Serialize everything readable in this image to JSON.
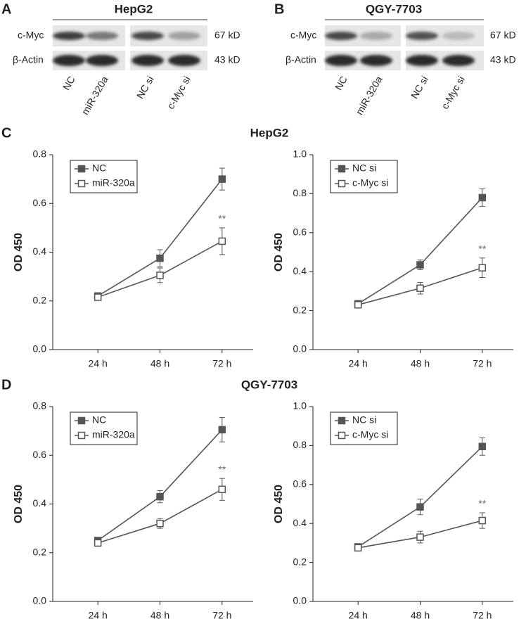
{
  "blots": [
    {
      "letter": "A",
      "title": "HepG2",
      "rows": [
        "c-Myc",
        "β-Actin"
      ],
      "sizes": [
        "67 kD",
        "43 kD"
      ],
      "lanes": [
        "NC",
        "miR-320a",
        "NC si",
        "c-Myc si"
      ]
    },
    {
      "letter": "B",
      "title": "QGY-7703",
      "rows": [
        "c-Myc",
        "β-Actin"
      ],
      "sizes": [
        "67 kD",
        "43 kD"
      ],
      "lanes": [
        "NC",
        "miR-320a",
        "NC si",
        "c-Myc si"
      ]
    }
  ],
  "sections": [
    {
      "letter": "C",
      "title": "HepG2"
    },
    {
      "letter": "D",
      "title": "QGY-7703"
    }
  ],
  "chart_data": [
    {
      "type": "line",
      "categories": [
        "24 h",
        "48 h",
        "72 h"
      ],
      "ylabel": "OD 450",
      "ylim": [
        0,
        0.8
      ],
      "yticks": [
        {
          "value": 0,
          "label": "0.0"
        },
        0.2,
        0.4,
        0.6,
        0.8
      ],
      "legend": "upper left",
      "series": [
        {
          "name": "NC",
          "color": "#555555",
          "marker": "filled-square",
          "values": [
            0.22,
            0.375,
            0.7
          ],
          "errors": [
            0.008,
            0.035,
            0.045
          ]
        },
        {
          "name": "miR-320a",
          "color": "#555555",
          "marker": "open-square",
          "values": [
            0.215,
            0.305,
            0.445
          ],
          "errors": [
            0.008,
            0.03,
            0.055
          ]
        }
      ],
      "annotations": [
        {
          "text": "**",
          "x": "72 h"
        }
      ]
    },
    {
      "type": "line",
      "categories": [
        "24 h",
        "48 h",
        "72 h"
      ],
      "ylabel": "OD 450",
      "ylim": [
        0,
        1
      ],
      "yticks": [
        {
          "value": 0,
          "label": "0.0"
        },
        0.2,
        0.4,
        0.6,
        0.8,
        {
          "value": 1,
          "label": "1.0"
        }
      ],
      "legend": "upper left",
      "series": [
        {
          "name": "NC si",
          "color": "#555555",
          "marker": "filled-square",
          "values": [
            0.235,
            0.435,
            0.78
          ],
          "errors": [
            0.008,
            0.025,
            0.045
          ]
        },
        {
          "name": "c-Myc si",
          "color": "#555555",
          "marker": "open-square",
          "values": [
            0.23,
            0.315,
            0.42
          ],
          "errors": [
            0.008,
            0.03,
            0.05
          ]
        }
      ],
      "annotations": [
        {
          "text": "**",
          "x": "72 h"
        }
      ]
    },
    {
      "type": "line",
      "categories": [
        "24 h",
        "48 h",
        "72 h"
      ],
      "ylabel": "OD 450",
      "ylim": [
        0,
        0.8
      ],
      "yticks": [
        {
          "value": 0,
          "label": "0.0"
        },
        0.2,
        0.4,
        0.6,
        0.8
      ],
      "legend": "upper left",
      "series": [
        {
          "name": "NC",
          "color": "#555555",
          "marker": "filled-square",
          "values": [
            0.25,
            0.43,
            0.705
          ],
          "errors": [
            0.008,
            0.025,
            0.05
          ]
        },
        {
          "name": "miR-320a",
          "color": "#555555",
          "marker": "open-square",
          "values": [
            0.24,
            0.32,
            0.46
          ],
          "errors": [
            0.008,
            0.02,
            0.045
          ]
        }
      ],
      "annotations": [
        {
          "text": "**",
          "x": "72 h"
        }
      ]
    },
    {
      "type": "line",
      "categories": [
        "24 h",
        "48 h",
        "72 h"
      ],
      "ylabel": "OD 450",
      "ylim": [
        0,
        1
      ],
      "yticks": [
        {
          "value": 0,
          "label": "0.0"
        },
        0.2,
        0.4,
        0.6,
        0.8,
        {
          "value": 1,
          "label": "1.0"
        }
      ],
      "legend": "upper left",
      "series": [
        {
          "name": "NC si",
          "color": "#555555",
          "marker": "filled-square",
          "values": [
            0.28,
            0.485,
            0.795
          ],
          "errors": [
            0.008,
            0.04,
            0.045
          ]
        },
        {
          "name": "c-Myc si",
          "color": "#555555",
          "marker": "open-square",
          "values": [
            0.275,
            0.33,
            0.415
          ],
          "errors": [
            0.008,
            0.03,
            0.04
          ]
        }
      ],
      "annotations": [
        {
          "text": "**",
          "x": "72 h"
        }
      ]
    }
  ]
}
